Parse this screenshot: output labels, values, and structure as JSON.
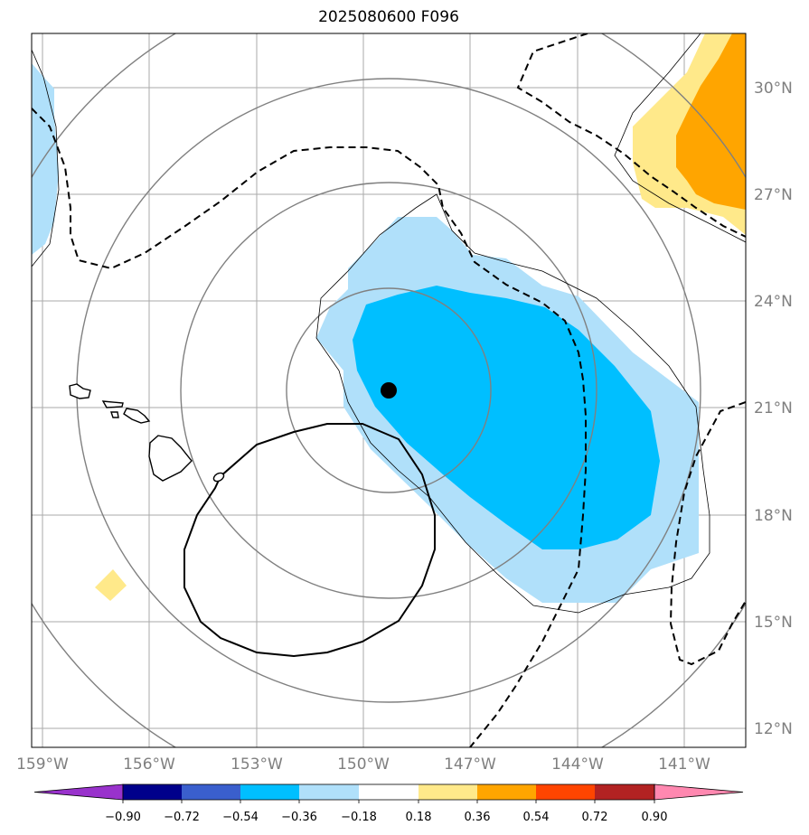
{
  "title": "2025080600 F096",
  "map": {
    "lon_ticks": [
      "159°W",
      "156°W",
      "153°W",
      "150°W",
      "147°W",
      "144°W",
      "141°W"
    ],
    "lat_ticks": [
      "30°N",
      "27°N",
      "24°N",
      "21°N",
      "18°N",
      "15°N",
      "12°N"
    ],
    "storm_center_marker": "filled-black-circle",
    "colors": {
      "light_blue": "#b0e0fa",
      "deep_sky_blue": "#00bfff",
      "khaki": "#ffe98a",
      "orange": "#ffa500",
      "gridline": "#aaaaaa",
      "range_ring": "#808080"
    }
  },
  "colorbar": {
    "labels": [
      "−0.90",
      "−0.72",
      "−0.54",
      "−0.36",
      "−0.18",
      "0.18",
      "0.36",
      "0.54",
      "0.72",
      "0.90"
    ],
    "colors": [
      "#9932cc",
      "#00008b",
      "#3a5fcd",
      "#00bfff",
      "#b0e0fa",
      "#ffffff",
      "#ffe98a",
      "#ffa500",
      "#ff4500",
      "#b22222",
      "#ff88b0"
    ]
  }
}
